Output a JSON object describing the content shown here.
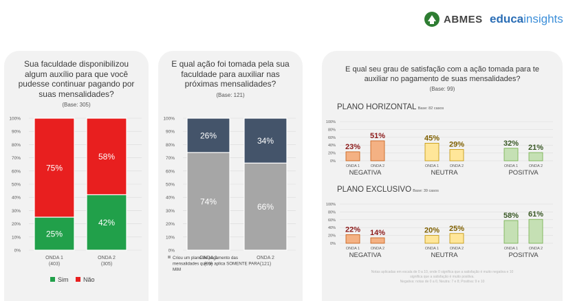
{
  "logos": {
    "abmes": "ABMES",
    "educa_bold": "educa",
    "educa_light": "insights"
  },
  "panels": [
    {
      "title": "Sua faculdade disponibilizou algum auxílio para que você pudesse continuar pagando por suas mensalidades?",
      "base": "(Base: 305)"
    },
    {
      "title": "E qual ação foi tomada pela sua faculdade para auxiliar nas próximas mensalidades?",
      "base": "(Base: 121)"
    },
    {
      "title": "E qual seu grau de satisfação com a ação tomada para te auxiliar no pagamento de suas mensalidades?",
      "base": "(Base: 99)"
    }
  ],
  "colors": {
    "sim": "#21a04a",
    "nao": "#e81f1f",
    "gray": "#a6a6a6",
    "navy": "#44546a",
    "negativa": "#f4b183",
    "neutra": "#ffe699",
    "positiva": "#c5e0b4",
    "neg_label": "#8b1a1a",
    "neu_label": "#7f6000",
    "pos_label": "#375623"
  },
  "footnote": [
    "Notas aplicadas em escala de 0 a 10, onde 0 significa que a satisfação é muito negativa e 10",
    "significa que a satisfação é muito positiva.",
    "Negativa: notas de 0 a 6; Neutra: 7 e 8; Positiva: 9 e 10"
  ],
  "chart_data": [
    {
      "type": "bar",
      "stacked": true,
      "categories": [
        "ONDA 1",
        "ONDA 2"
      ],
      "category_bases": [
        "(403)",
        "(305)"
      ],
      "series": [
        {
          "name": "Sim",
          "values": [
            25,
            42
          ],
          "labels": [
            "25%",
            "42%"
          ]
        },
        {
          "name": "Não",
          "values": [
            75,
            58
          ],
          "labels": [
            "75%",
            "58%"
          ]
        }
      ],
      "y_ticks": [
        "0%",
        "10%",
        "20%",
        "30%",
        "40%",
        "50%",
        "60%",
        "70%",
        "80%",
        "90%",
        "100%"
      ],
      "ylim": [
        0,
        100
      ],
      "legend": "bottom"
    },
    {
      "type": "bar",
      "stacked": true,
      "categories": [
        "ONDA 1",
        "ONDA 2"
      ],
      "category_bases": [
        "(99)",
        "(121)"
      ],
      "series": [
        {
          "name": "Criou um plano de pagamento das mensalidades que se aplica SOMENTE PARA MIM",
          "values": [
            74,
            66
          ],
          "labels": [
            "74%",
            "66%"
          ]
        },
        {
          "values": [
            26,
            34
          ],
          "labels": [
            "26%",
            "34%"
          ]
        }
      ],
      "y_ticks": [
        "0%",
        "10%",
        "20%",
        "30%",
        "40%",
        "50%",
        "60%",
        "70%",
        "80%",
        "90%",
        "100%"
      ],
      "ylim": [
        0,
        100
      ],
      "legend": "bottom"
    },
    {
      "type": "bar",
      "title": "PLANO HORIZONTAL",
      "subtitle": "Base: 82 casos",
      "groups": [
        "NEGATIVA",
        "NEUTRA",
        "POSITIVA"
      ],
      "categories": [
        "ONDA 1",
        "ONDA 2"
      ],
      "values": [
        [
          23,
          51
        ],
        [
          45,
          29
        ],
        [
          32,
          21
        ]
      ],
      "labels": [
        [
          "23%",
          "51%"
        ],
        [
          "45%",
          "29%"
        ],
        [
          "32%",
          "21%"
        ]
      ],
      "y_ticks": [
        "0%",
        "20%",
        "40%",
        "60%",
        "80%",
        "100%"
      ],
      "ylim": [
        0,
        100
      ]
    },
    {
      "type": "bar",
      "title": "PLANO EXCLUSIVO",
      "subtitle": "Base: 39 casos",
      "groups": [
        "NEGATIVA",
        "NEUTRA",
        "POSITIVA"
      ],
      "categories": [
        "ONDA 1",
        "ONDA 2"
      ],
      "values": [
        [
          22,
          14
        ],
        [
          20,
          25
        ],
        [
          58,
          61
        ]
      ],
      "labels": [
        [
          "22%",
          "14%"
        ],
        [
          "20%",
          "25%"
        ],
        [
          "58%",
          "61%"
        ]
      ],
      "y_ticks": [
        "0%",
        "20%",
        "40%",
        "60%",
        "80%",
        "100%"
      ],
      "ylim": [
        0,
        100
      ]
    }
  ]
}
